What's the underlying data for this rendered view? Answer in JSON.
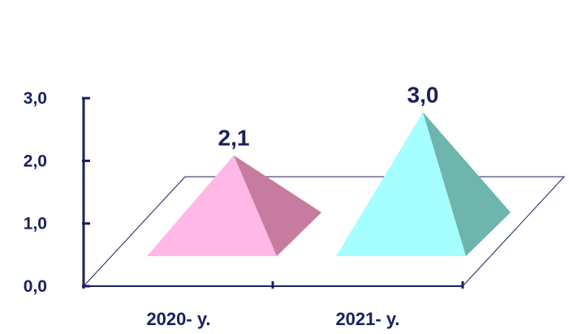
{
  "chart_data": {
    "type": "bar",
    "shape": "pyramid-3d",
    "categories": [
      "2020- y.",
      "2021- y."
    ],
    "values": [
      2.1,
      3.0
    ],
    "data_labels": [
      "2,1",
      "3,0"
    ],
    "y_ticks": [
      {
        "value": 0,
        "label": "0,0"
      },
      {
        "value": 1,
        "label": "1,0"
      },
      {
        "value": 2,
        "label": "2,0"
      },
      {
        "value": 3,
        "label": "3,0"
      }
    ],
    "ylim": [
      0,
      3
    ],
    "grid": false,
    "legend": "none",
    "series": [
      {
        "front_color": "#ffb8e8",
        "side_color": "#c77b9f"
      },
      {
        "front_color": "#a6ffff",
        "side_color": "#6db5ad"
      }
    ],
    "axis_color": "#1a1f5e"
  }
}
